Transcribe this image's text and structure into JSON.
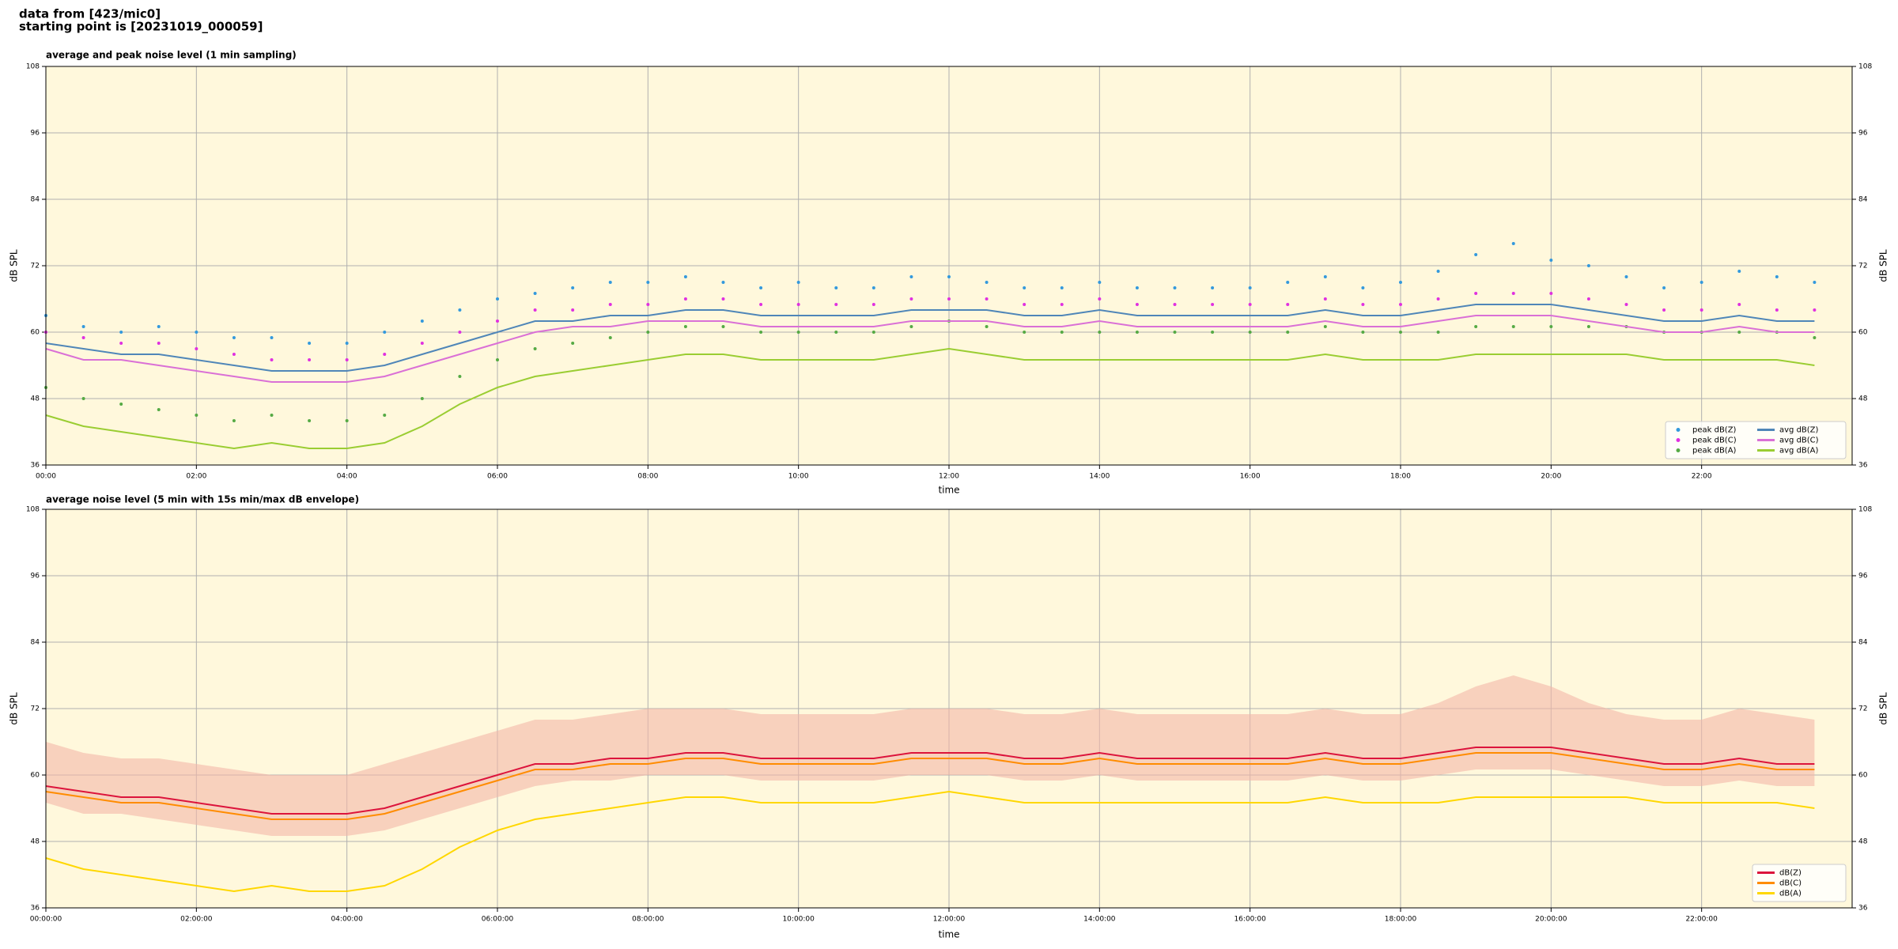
{
  "title": [
    "data from [423/mic0]",
    "starting point is [20231019_000059]"
  ],
  "chart_data": [
    {
      "type": "line",
      "title": "average and peak noise level (1 min sampling)",
      "xlabel": "time",
      "ylabel": "dB SPL",
      "background": "#fff8dc",
      "grid": true,
      "legend": "lower right",
      "legend_ncol": 2,
      "x": [
        0,
        30,
        60,
        90,
        120,
        150,
        180,
        210,
        240,
        270,
        300,
        330,
        360,
        390,
        420,
        450,
        480,
        510,
        540,
        570,
        600,
        630,
        660,
        690,
        720,
        750,
        780,
        810,
        840,
        870,
        900,
        930,
        960,
        990,
        1020,
        1050,
        1080,
        1110,
        1140,
        1170,
        1200,
        1230,
        1260,
        1290,
        1320,
        1350,
        1380,
        1410
      ],
      "xlim": [
        0,
        1440
      ],
      "xticks": [
        {
          "value": 0,
          "label": "00:00"
        },
        {
          "value": 120,
          "label": "02:00"
        },
        {
          "value": 240,
          "label": "04:00"
        },
        {
          "value": 360,
          "label": "06:00"
        },
        {
          "value": 480,
          "label": "08:00"
        },
        {
          "value": 600,
          "label": "10:00"
        },
        {
          "value": 720,
          "label": "12:00"
        },
        {
          "value": 840,
          "label": "14:00"
        },
        {
          "value": 960,
          "label": "16:00"
        },
        {
          "value": 1080,
          "label": "18:00"
        },
        {
          "value": 1200,
          "label": "20:00"
        },
        {
          "value": 1320,
          "label": "22:00"
        }
      ],
      "ylim": [
        36,
        108
      ],
      "yticks": [
        36,
        48,
        60,
        72,
        84,
        96,
        108
      ],
      "series": [
        {
          "name": "peak dB(Z)",
          "style": "scatter",
          "color": "#3399dd",
          "values": [
            63,
            61,
            60,
            61,
            60,
            59,
            59,
            58,
            58,
            60,
            62,
            64,
            66,
            67,
            68,
            69,
            69,
            70,
            69,
            68,
            69,
            68,
            68,
            70,
            70,
            69,
            68,
            68,
            69,
            68,
            68,
            68,
            68,
            69,
            70,
            68,
            69,
            71,
            74,
            76,
            73,
            72,
            70,
            68,
            69,
            71,
            70,
            69
          ]
        },
        {
          "name": "peak dB(C)",
          "style": "scatter",
          "color": "#e030e0",
          "values": [
            60,
            59,
            58,
            58,
            57,
            56,
            55,
            55,
            55,
            56,
            58,
            60,
            62,
            64,
            64,
            65,
            65,
            66,
            66,
            65,
            65,
            65,
            65,
            66,
            66,
            66,
            65,
            65,
            66,
            65,
            65,
            65,
            65,
            65,
            66,
            65,
            65,
            66,
            67,
            67,
            67,
            66,
            65,
            64,
            64,
            65,
            64,
            64
          ]
        },
        {
          "name": "peak dB(A)",
          "style": "scatter",
          "color": "#55aa44",
          "values": [
            50,
            48,
            47,
            46,
            45,
            44,
            45,
            44,
            44,
            45,
            48,
            52,
            55,
            57,
            58,
            59,
            60,
            61,
            61,
            60,
            60,
            60,
            60,
            61,
            62,
            61,
            60,
            60,
            60,
            60,
            60,
            60,
            60,
            60,
            61,
            60,
            60,
            60,
            61,
            61,
            61,
            61,
            61,
            60,
            60,
            60,
            60,
            59
          ]
        },
        {
          "name": "avg dB(Z)",
          "style": "line",
          "color": "#4f86b8",
          "values": [
            58,
            57,
            56,
            56,
            55,
            54,
            53,
            53,
            53,
            54,
            56,
            58,
            60,
            62,
            62,
            63,
            63,
            64,
            64,
            63,
            63,
            63,
            63,
            64,
            64,
            64,
            63,
            63,
            64,
            63,
            63,
            63,
            63,
            63,
            64,
            63,
            63,
            64,
            65,
            65,
            65,
            64,
            63,
            62,
            62,
            63,
            62,
            62
          ]
        },
        {
          "name": "avg dB(C)",
          "style": "line",
          "color": "#da70d6",
          "values": [
            57,
            55,
            55,
            54,
            53,
            52,
            51,
            51,
            51,
            52,
            54,
            56,
            58,
            60,
            61,
            61,
            62,
            62,
            62,
            61,
            61,
            61,
            61,
            62,
            62,
            62,
            61,
            61,
            62,
            61,
            61,
            61,
            61,
            61,
            62,
            61,
            61,
            62,
            63,
            63,
            63,
            62,
            61,
            60,
            60,
            61,
            60,
            60
          ]
        },
        {
          "name": "avg dB(A)",
          "style": "line",
          "color": "#9acd32",
          "values": [
            45,
            43,
            42,
            41,
            40,
            39,
            40,
            39,
            39,
            40,
            43,
            47,
            50,
            52,
            53,
            54,
            55,
            56,
            56,
            55,
            55,
            55,
            55,
            56,
            57,
            56,
            55,
            55,
            55,
            55,
            55,
            55,
            55,
            55,
            56,
            55,
            55,
            55,
            56,
            56,
            56,
            56,
            56,
            55,
            55,
            55,
            55,
            54
          ]
        }
      ]
    },
    {
      "type": "line",
      "title": "average noise level (5 min with 15s min/max dB envelope)",
      "xlabel": "time",
      "ylabel": "dB SPL",
      "background": "#fff8dc",
      "grid": true,
      "legend": "lower right",
      "legend_ncol": 1,
      "x": [
        0,
        30,
        60,
        90,
        120,
        150,
        180,
        210,
        240,
        270,
        300,
        330,
        360,
        390,
        420,
        450,
        480,
        510,
        540,
        570,
        600,
        630,
        660,
        690,
        720,
        750,
        780,
        810,
        840,
        870,
        900,
        930,
        960,
        990,
        1020,
        1050,
        1080,
        1110,
        1140,
        1170,
        1200,
        1230,
        1260,
        1290,
        1320,
        1350,
        1380,
        1410
      ],
      "xlim": [
        0,
        1440
      ],
      "xticks": [
        {
          "value": 0,
          "label": "00:00:00"
        },
        {
          "value": 120,
          "label": "02:00:00"
        },
        {
          "value": 240,
          "label": "04:00:00"
        },
        {
          "value": 360,
          "label": "06:00:00"
        },
        {
          "value": 480,
          "label": "08:00:00"
        },
        {
          "value": 600,
          "label": "10:00:00"
        },
        {
          "value": 720,
          "label": "12:00:00"
        },
        {
          "value": 840,
          "label": "14:00:00"
        },
        {
          "value": 960,
          "label": "16:00:00"
        },
        {
          "value": 1080,
          "label": "18:00:00"
        },
        {
          "value": 1200,
          "label": "20:00:00"
        },
        {
          "value": 1320,
          "label": "22:00:00"
        }
      ],
      "ylim": [
        36,
        108
      ],
      "yticks": [
        36,
        48,
        60,
        72,
        84,
        96,
        108
      ],
      "band": {
        "color": "#f4b8a8",
        "upper": [
          66,
          64,
          63,
          63,
          62,
          61,
          60,
          60,
          60,
          62,
          64,
          66,
          68,
          70,
          70,
          71,
          72,
          72,
          72,
          71,
          71,
          71,
          71,
          72,
          72,
          72,
          71,
          71,
          72,
          71,
          71,
          71,
          71,
          71,
          72,
          71,
          71,
          73,
          76,
          78,
          76,
          73,
          71,
          70,
          70,
          72,
          71,
          70
        ],
        "lower": [
          55,
          53,
          53,
          52,
          51,
          50,
          49,
          49,
          49,
          50,
          52,
          54,
          56,
          58,
          59,
          59,
          60,
          60,
          60,
          59,
          59,
          59,
          59,
          60,
          60,
          60,
          59,
          59,
          60,
          59,
          59,
          59,
          59,
          59,
          60,
          59,
          59,
          60,
          61,
          61,
          61,
          60,
          59,
          58,
          58,
          59,
          58,
          58
        ]
      },
      "series": [
        {
          "name": "dB(Z)",
          "style": "line",
          "color": "#dc143c",
          "values": [
            58,
            57,
            56,
            56,
            55,
            54,
            53,
            53,
            53,
            54,
            56,
            58,
            60,
            62,
            62,
            63,
            63,
            64,
            64,
            63,
            63,
            63,
            63,
            64,
            64,
            64,
            63,
            63,
            64,
            63,
            63,
            63,
            63,
            63,
            64,
            63,
            63,
            64,
            65,
            65,
            65,
            64,
            63,
            62,
            62,
            63,
            62,
            62
          ]
        },
        {
          "name": "dB(C)",
          "style": "line",
          "color": "#ff8c00",
          "values": [
            57,
            56,
            55,
            55,
            54,
            53,
            52,
            52,
            52,
            53,
            55,
            57,
            59,
            61,
            61,
            62,
            62,
            63,
            63,
            62,
            62,
            62,
            62,
            63,
            63,
            63,
            62,
            62,
            63,
            62,
            62,
            62,
            62,
            62,
            63,
            62,
            62,
            63,
            64,
            64,
            64,
            63,
            62,
            61,
            61,
            62,
            61,
            61
          ]
        },
        {
          "name": "dB(A)",
          "style": "line",
          "color": "#ffd700",
          "values": [
            45,
            43,
            42,
            41,
            40,
            39,
            40,
            39,
            39,
            40,
            43,
            47,
            50,
            52,
            53,
            54,
            55,
            56,
            56,
            55,
            55,
            55,
            55,
            56,
            57,
            56,
            55,
            55,
            55,
            55,
            55,
            55,
            55,
            55,
            56,
            55,
            55,
            55,
            56,
            56,
            56,
            56,
            56,
            55,
            55,
            55,
            55,
            54
          ]
        }
      ]
    }
  ]
}
